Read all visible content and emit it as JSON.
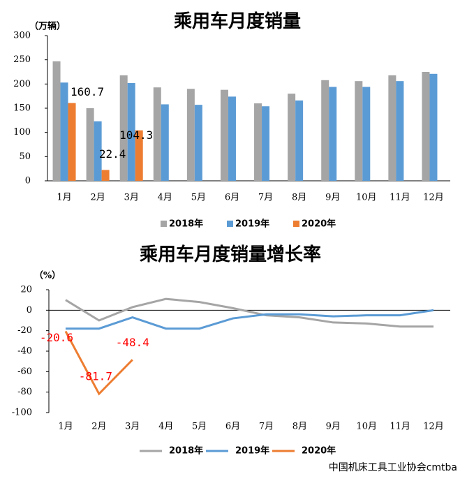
{
  "chart_data": [
    {
      "type": "bar",
      "title": "乘用车月度销量",
      "unit_label": "（万辆）",
      "categories": [
        "1月",
        "2月",
        "3月",
        "4月",
        "5月",
        "6月",
        "7月",
        "8月",
        "9月",
        "10月",
        "11月",
        "12月"
      ],
      "series": [
        {
          "name": "2018年",
          "color": "#a5a5a5",
          "values": [
            247,
            150,
            218,
            193,
            190,
            188,
            160,
            180,
            208,
            206,
            218,
            225
          ]
        },
        {
          "name": "2019年",
          "color": "#5b9bd5",
          "values": [
            203,
            123,
            202,
            158,
            157,
            174,
            154,
            166,
            194,
            194,
            206,
            221
          ]
        },
        {
          "name": "2020年",
          "color": "#ed7d31",
          "values": [
            160.7,
            22.4,
            104.3,
            null,
            null,
            null,
            null,
            null,
            null,
            null,
            null,
            null
          ],
          "show_labels": true
        }
      ],
      "ylim": [
        0,
        300
      ],
      "yticks": [
        0,
        50,
        100,
        150,
        200,
        250,
        300
      ],
      "legend": "bottom"
    },
    {
      "type": "line",
      "title": "乘用车月度销量增长率",
      "unit_label": "（%）",
      "categories": [
        "1月",
        "2月",
        "3月",
        "4月",
        "5月",
        "6月",
        "7月",
        "8月",
        "9月",
        "10月",
        "11月",
        "12月"
      ],
      "series": [
        {
          "name": "2018年",
          "color": "#a5a5a5",
          "values": [
            10,
            -10,
            3,
            11,
            8,
            2,
            -5,
            -7,
            -12,
            -13,
            -16,
            -16
          ]
        },
        {
          "name": "2019年",
          "color": "#5b9bd5",
          "values": [
            -18,
            -18,
            -7,
            -18,
            -18,
            -8,
            -4,
            -4,
            -6,
            -5,
            -5,
            0
          ]
        },
        {
          "name": "2020年",
          "color": "#ed7d31",
          "values": [
            -20.6,
            -81.7,
            -48.4,
            null,
            null,
            null,
            null,
            null,
            null,
            null,
            null,
            null
          ],
          "show_labels": true,
          "label_color": "#ff0000"
        }
      ],
      "ylim": [
        -100,
        20
      ],
      "yticks": [
        20,
        0,
        -20,
        -40,
        -60,
        -80,
        -100
      ],
      "legend": "bottom"
    }
  ],
  "watermark": "中国机床工具工业协会cmtba"
}
